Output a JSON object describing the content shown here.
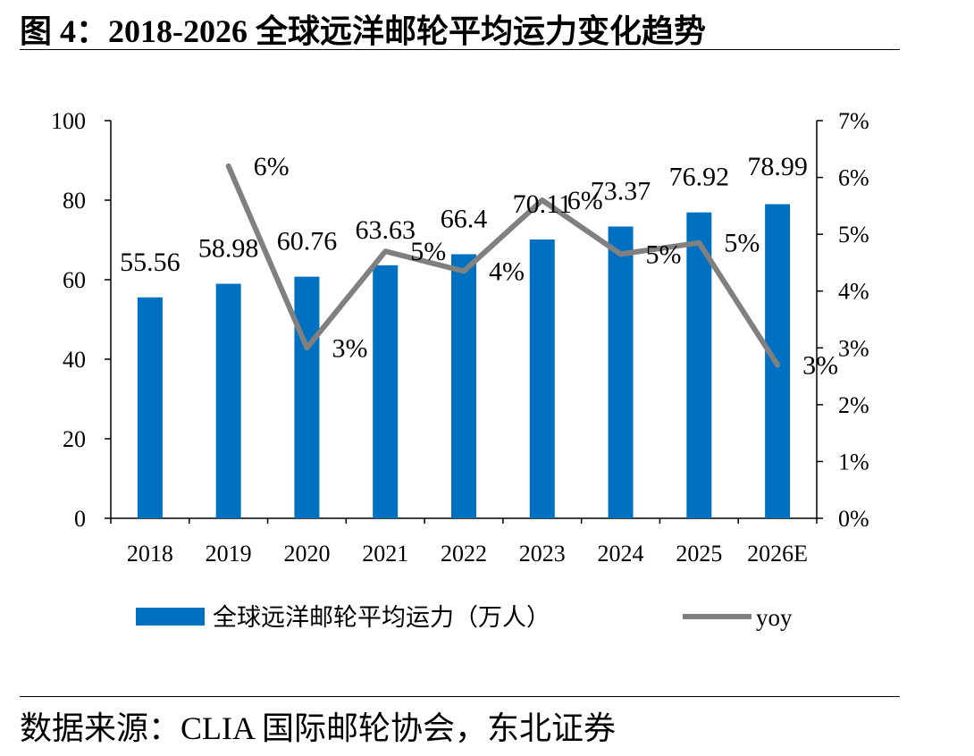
{
  "header": {
    "title": "图 4：2018-2026 全球远洋邮轮平均运力变化趋势"
  },
  "footer": {
    "source": "数据来源：CLIA 国际邮轮协会，东北证券"
  },
  "colors": {
    "bar": "#0070C0",
    "line": "#808080"
  },
  "chart_data": {
    "type": "bar",
    "categories": [
      "2018",
      "2019",
      "2020",
      "2021",
      "2022",
      "2023",
      "2024",
      "2025",
      "2026E"
    ],
    "series": [
      {
        "name": "全球远洋邮轮平均运力（万人）",
        "type": "bar",
        "axis": "left",
        "values": [
          55.56,
          58.98,
          60.76,
          63.63,
          66.4,
          70.11,
          73.37,
          76.92,
          78.99
        ],
        "labels": [
          "55.56",
          "58.98",
          "60.76",
          "63.63",
          "66.4",
          "70.11",
          "73.37",
          "76.92",
          "78.99"
        ]
      },
      {
        "name": "yoy",
        "type": "line",
        "axis": "right",
        "x": [
          "2019",
          "2020",
          "2021",
          "2022",
          "2023",
          "2024",
          "2025",
          "2026E"
        ],
        "values": [
          6.2,
          3.0,
          4.7,
          4.35,
          5.6,
          4.65,
          4.85,
          2.7
        ],
        "labels": [
          "6%",
          "3%",
          "5%",
          "4%",
          "6%",
          "5%",
          "5%",
          "3%"
        ]
      }
    ],
    "y_left": {
      "ylim": [
        0,
        100
      ],
      "ticks": [
        "0",
        "20",
        "40",
        "60",
        "80",
        "100"
      ]
    },
    "y_right": {
      "ylim": [
        0,
        7
      ],
      "ticks": [
        "0%",
        "1%",
        "2%",
        "3%",
        "4%",
        "5%",
        "6%",
        "7%"
      ]
    },
    "grid": false,
    "legend_position": "bottom"
  }
}
